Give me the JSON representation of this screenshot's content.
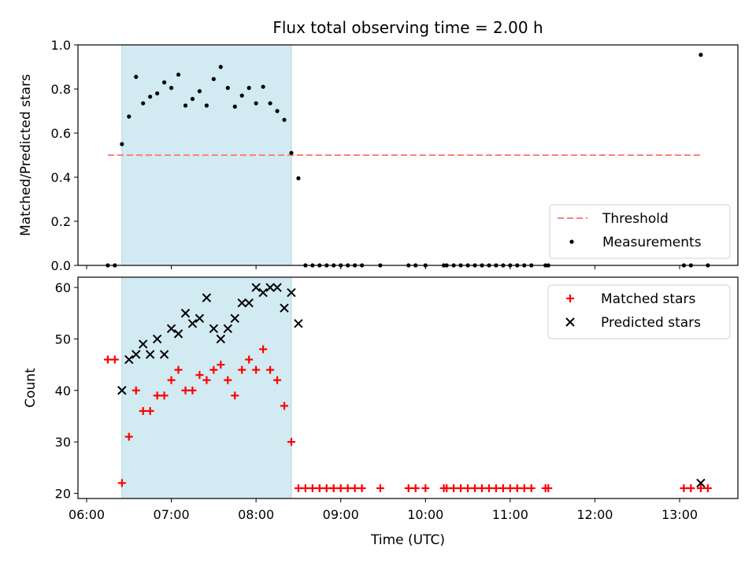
{
  "title": "Flux total observing time = 2.00 h",
  "colors": {
    "shade": "#add8e6",
    "threshold": "#ff7f7f",
    "measurement": "#000000",
    "matched": "#ff0000",
    "predicted": "#000000"
  },
  "chart_data": [
    {
      "type": "scatter",
      "ylabel": "Matched/Predicted stars",
      "ylim": [
        0,
        1.0
      ],
      "yticks": [
        0.0,
        0.2,
        0.4,
        0.6,
        0.8,
        1.0
      ],
      "ytick_labels": [
        "0.0",
        "0.2",
        "0.4",
        "0.6",
        "0.8",
        "1.0"
      ],
      "xlim": [
        "06:00",
        "13:45"
      ],
      "shaded_interval": [
        "06:25",
        "08:25"
      ],
      "legend_position": "lower right",
      "threshold": {
        "name": "Threshold",
        "value": 0.5,
        "x_range": [
          "06:15",
          "13:15"
        ]
      },
      "series": [
        {
          "name": "Measurements",
          "points": [
            [
              "06:15",
              0.0
            ],
            [
              "06:20",
              0.0
            ],
            [
              "06:25",
              0.55
            ],
            [
              "06:30",
              0.675
            ],
            [
              "06:35",
              0.855
            ],
            [
              "06:40",
              0.735
            ],
            [
              "06:45",
              0.765
            ],
            [
              "06:50",
              0.78
            ],
            [
              "06:55",
              0.83
            ],
            [
              "07:00",
              0.805
            ],
            [
              "07:05",
              0.865
            ],
            [
              "07:10",
              0.725
            ],
            [
              "07:15",
              0.755
            ],
            [
              "07:20",
              0.79
            ],
            [
              "07:25",
              0.725
            ],
            [
              "07:30",
              0.845
            ],
            [
              "07:35",
              0.9
            ],
            [
              "07:40",
              0.805
            ],
            [
              "07:45",
              0.72
            ],
            [
              "07:50",
              0.77
            ],
            [
              "07:55",
              0.805
            ],
            [
              "08:00",
              0.735
            ],
            [
              "08:05",
              0.81
            ],
            [
              "08:10",
              0.735
            ],
            [
              "08:15",
              0.7
            ],
            [
              "08:20",
              0.66
            ],
            [
              "08:25",
              0.51
            ],
            [
              "08:30",
              0.395
            ],
            [
              "08:35",
              0.0
            ],
            [
              "08:40",
              0.0
            ],
            [
              "08:45",
              0.0
            ],
            [
              "08:50",
              0.0
            ],
            [
              "08:55",
              0.0
            ],
            [
              "09:00",
              0.0
            ],
            [
              "09:05",
              0.0
            ],
            [
              "09:10",
              0.0
            ],
            [
              "09:15",
              0.0
            ],
            [
              "09:28",
              0.0
            ],
            [
              "09:48",
              0.0
            ],
            [
              "09:53",
              0.0
            ],
            [
              "10:00",
              0.0
            ],
            [
              "10:13",
              0.0
            ],
            [
              "10:15",
              0.0
            ],
            [
              "10:20",
              0.0
            ],
            [
              "10:25",
              0.0
            ],
            [
              "10:30",
              0.0
            ],
            [
              "10:35",
              0.0
            ],
            [
              "10:40",
              0.0
            ],
            [
              "10:45",
              0.0
            ],
            [
              "10:50",
              0.0
            ],
            [
              "10:55",
              0.0
            ],
            [
              "11:00",
              0.0
            ],
            [
              "11:05",
              0.0
            ],
            [
              "11:10",
              0.0
            ],
            [
              "11:15",
              0.0
            ],
            [
              "11:25",
              0.0
            ],
            [
              "11:27",
              0.0
            ],
            [
              "13:03",
              0.0
            ],
            [
              "13:08",
              0.0
            ],
            [
              "13:15",
              0.955
            ],
            [
              "13:20",
              0.0
            ]
          ]
        }
      ]
    },
    {
      "type": "scatter",
      "xlabel": "Time (UTC)",
      "ylabel": "Count",
      "ylim": [
        19,
        62
      ],
      "yticks": [
        20,
        30,
        40,
        50,
        60
      ],
      "ytick_labels": [
        "20",
        "30",
        "40",
        "50",
        "60"
      ],
      "xlim": [
        "06:00",
        "13:45"
      ],
      "xticks": [
        "06:00",
        "07:00",
        "08:00",
        "09:00",
        "10:00",
        "11:00",
        "12:00",
        "13:00"
      ],
      "shaded_interval": [
        "06:25",
        "08:25"
      ],
      "legend_position": "upper right",
      "series": [
        {
          "name": "Matched stars",
          "marker": "+",
          "points": [
            [
              "06:15",
              46
            ],
            [
              "06:20",
              46
            ],
            [
              "06:25",
              22
            ],
            [
              "06:30",
              31
            ],
            [
              "06:35",
              40
            ],
            [
              "06:40",
              36
            ],
            [
              "06:45",
              36
            ],
            [
              "06:50",
              39
            ],
            [
              "06:55",
              39
            ],
            [
              "07:00",
              42
            ],
            [
              "07:05",
              44
            ],
            [
              "07:10",
              40
            ],
            [
              "07:15",
              40
            ],
            [
              "07:20",
              43
            ],
            [
              "07:25",
              42
            ],
            [
              "07:30",
              44
            ],
            [
              "07:35",
              45
            ],
            [
              "07:40",
              42
            ],
            [
              "07:45",
              39
            ],
            [
              "07:50",
              44
            ],
            [
              "07:55",
              46
            ],
            [
              "08:00",
              44
            ],
            [
              "08:05",
              48
            ],
            [
              "08:10",
              44
            ],
            [
              "08:15",
              42
            ],
            [
              "08:20",
              37
            ],
            [
              "08:25",
              30
            ],
            [
              "08:30",
              21
            ],
            [
              "08:35",
              21
            ],
            [
              "08:40",
              21
            ],
            [
              "08:45",
              21
            ],
            [
              "08:50",
              21
            ],
            [
              "08:55",
              21
            ],
            [
              "09:00",
              21
            ],
            [
              "09:05",
              21
            ],
            [
              "09:10",
              21
            ],
            [
              "09:15",
              21
            ],
            [
              "09:28",
              21
            ],
            [
              "09:48",
              21
            ],
            [
              "09:53",
              21
            ],
            [
              "10:00",
              21
            ],
            [
              "10:13",
              21
            ],
            [
              "10:15",
              21
            ],
            [
              "10:20",
              21
            ],
            [
              "10:25",
              21
            ],
            [
              "10:30",
              21
            ],
            [
              "10:35",
              21
            ],
            [
              "10:40",
              21
            ],
            [
              "10:45",
              21
            ],
            [
              "10:50",
              21
            ],
            [
              "10:55",
              21
            ],
            [
              "11:00",
              21
            ],
            [
              "11:05",
              21
            ],
            [
              "11:10",
              21
            ],
            [
              "11:15",
              21
            ],
            [
              "11:25",
              21
            ],
            [
              "11:27",
              21
            ],
            [
              "13:03",
              21
            ],
            [
              "13:08",
              21
            ],
            [
              "13:15",
              21
            ],
            [
              "13:20",
              21
            ]
          ]
        },
        {
          "name": "Predicted stars",
          "marker": "x",
          "points": [
            [
              "06:25",
              40
            ],
            [
              "06:30",
              46
            ],
            [
              "06:35",
              47
            ],
            [
              "06:40",
              49
            ],
            [
              "06:45",
              47
            ],
            [
              "06:50",
              50
            ],
            [
              "06:55",
              47
            ],
            [
              "07:00",
              52
            ],
            [
              "07:05",
              51
            ],
            [
              "07:10",
              55
            ],
            [
              "07:15",
              53
            ],
            [
              "07:20",
              54
            ],
            [
              "07:25",
              58
            ],
            [
              "07:30",
              52
            ],
            [
              "07:35",
              50
            ],
            [
              "07:40",
              52
            ],
            [
              "07:45",
              54
            ],
            [
              "07:50",
              57
            ],
            [
              "07:55",
              57
            ],
            [
              "08:00",
              60
            ],
            [
              "08:05",
              59
            ],
            [
              "08:10",
              60
            ],
            [
              "08:15",
              60
            ],
            [
              "08:20",
              56
            ],
            [
              "08:25",
              59
            ],
            [
              "08:30",
              53
            ],
            [
              "13:15",
              22
            ]
          ]
        }
      ]
    }
  ]
}
